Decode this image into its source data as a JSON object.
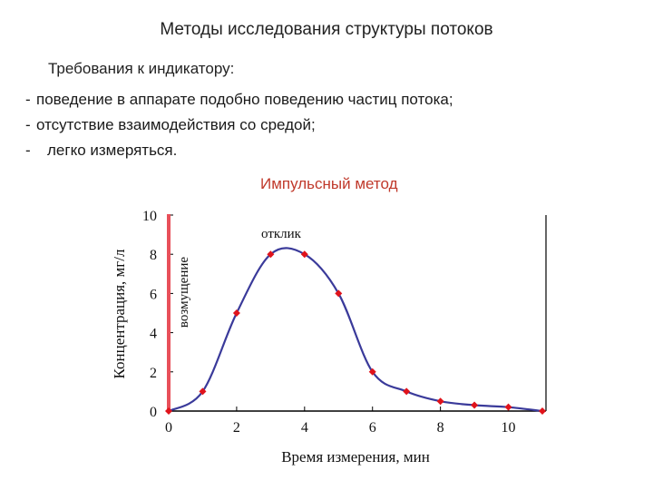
{
  "title": "Методы исследования структуры потоков",
  "requirements": {
    "heading": "Требования к индикатору:",
    "items": [
      "поведение в аппарате подобно поведению частиц потока;",
      "отсутствие взаимодействия со средой;",
      "легко измеряться."
    ]
  },
  "method_label": "Импульсный метод",
  "colors": {
    "method_label": "#c0392b",
    "curve": "#3a3a9a",
    "points": "#e0131b",
    "impulse": "#e8505a",
    "axis": "#000000"
  },
  "chart_data": {
    "type": "line",
    "xlabel": "Время измерения, мин",
    "ylabel": "Концентрация, мг/л",
    "xlim": [
      0,
      11
    ],
    "ylim": [
      0,
      10
    ],
    "xticks": [
      "0",
      "2",
      "4",
      "6",
      "8",
      "10"
    ],
    "yticks": [
      "0",
      "2",
      "4",
      "6",
      "8",
      "10"
    ],
    "grid": false,
    "impulse": {
      "x": 0,
      "label": "возмущение"
    },
    "annotation": "отклик",
    "series": [
      {
        "x": [
          0,
          1,
          2,
          3,
          4,
          5,
          6,
          7,
          8,
          9,
          10,
          11
        ],
        "values": [
          0,
          1,
          5,
          8,
          8,
          6,
          2,
          1,
          0.5,
          0.3,
          0.2,
          0
        ]
      }
    ]
  }
}
